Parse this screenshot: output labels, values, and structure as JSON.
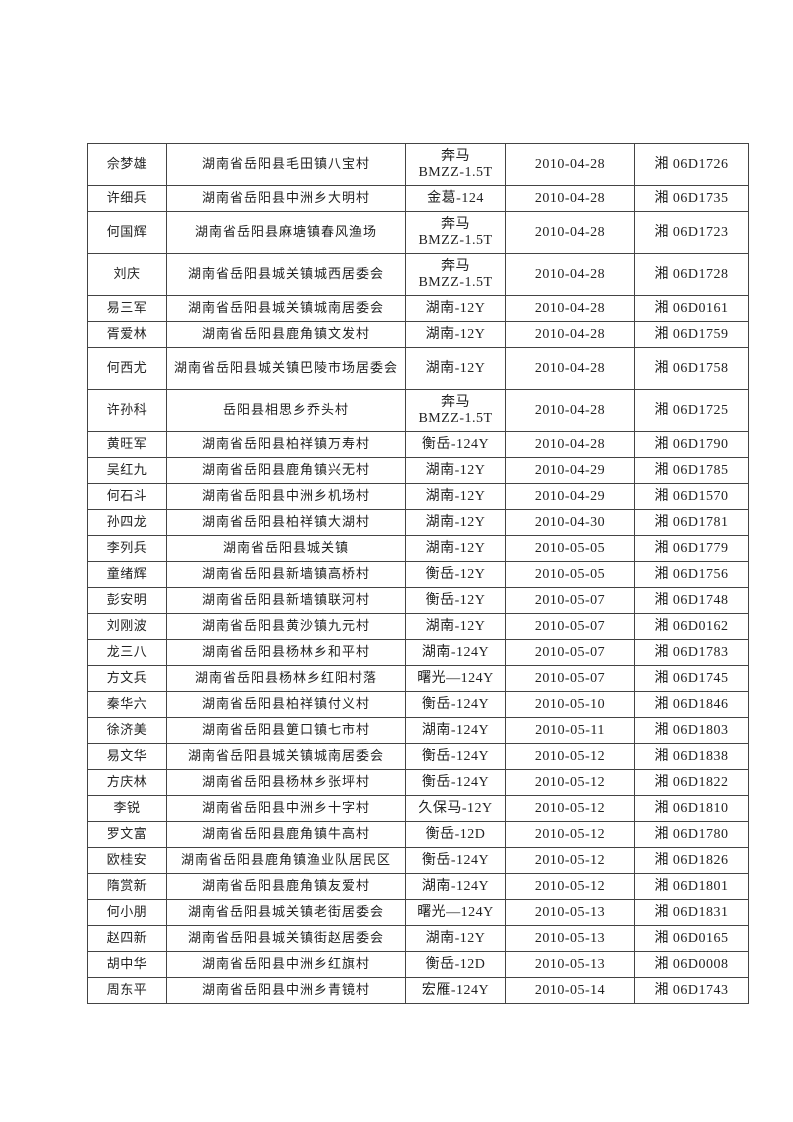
{
  "table": {
    "rows": [
      [
        "佘梦雄",
        "湖南省岳阳县毛田镇八宝村",
        "奔马\nBMZZ-1.5T",
        "2010-04-28",
        "湘 06D1726"
      ],
      [
        "许细兵",
        "湖南省岳阳县中洲乡大明村",
        "金葛-124",
        "2010-04-28",
        "湘 06D1735"
      ],
      [
        "何国辉",
        "湖南省岳阳县麻塘镇春风渔场",
        "奔马\nBMZZ-1.5T",
        "2010-04-28",
        "湘 06D1723"
      ],
      [
        "刘庆",
        "湖南省岳阳县城关镇城西居委会",
        "奔马\nBMZZ-1.5T",
        "2010-04-28",
        "湘 06D1728"
      ],
      [
        "易三军",
        "湖南省岳阳县城关镇城南居委会",
        "湖南-12Y",
        "2010-04-28",
        "湘 06D0161"
      ],
      [
        "胥爱林",
        "湖南省岳阳县鹿角镇文发村",
        "湖南-12Y",
        "2010-04-28",
        "湘 06D1759"
      ],
      [
        "何西尤",
        "湖南省岳阳县城关镇巴陵市场居委会",
        "湖南-12Y",
        "2010-04-28",
        "湘 06D1758"
      ],
      [
        "许孙科",
        "岳阳县相思乡乔头村",
        "奔马\nBMZZ-1.5T",
        "2010-04-28",
        "湘 06D1725"
      ],
      [
        "黄旺军",
        "湖南省岳阳县柏祥镇万寿村",
        "衡岳-124Y",
        "2010-04-28",
        "湘 06D1790"
      ],
      [
        "吴红九",
        "湖南省岳阳县鹿角镇兴无村",
        "湖南-12Y",
        "2010-04-29",
        "湘 06D1785"
      ],
      [
        "何石斗",
        "湖南省岳阳县中洲乡机场村",
        "湖南-12Y",
        "2010-04-29",
        "湘 06D1570"
      ],
      [
        "孙四龙",
        "湖南省岳阳县柏祥镇大湖村",
        "湖南-12Y",
        "2010-04-30",
        "湘 06D1781"
      ],
      [
        "李列兵",
        "湖南省岳阳县城关镇",
        "湖南-12Y",
        "2010-05-05",
        "湘 06D1779"
      ],
      [
        "童绪辉",
        "湖南省岳阳县新墙镇高桥村",
        "衡岳-12Y",
        "2010-05-05",
        "湘 06D1756"
      ],
      [
        "彭安明",
        "湖南省岳阳县新墙镇联河村",
        "衡岳-12Y",
        "2010-05-07",
        "湘 06D1748"
      ],
      [
        "刘刚波",
        "湖南省岳阳县黄沙镇九元村",
        "湖南-12Y",
        "2010-05-07",
        "湘 06D0162"
      ],
      [
        "龙三八",
        "湖南省岳阳县杨林乡和平村",
        "湖南-124Y",
        "2010-05-07",
        "湘 06D1783"
      ],
      [
        "方文兵",
        "湖南省岳阳县杨林乡红阳村落",
        "曙光—124Y",
        "2010-05-07",
        "湘 06D1745"
      ],
      [
        "秦华六",
        "湖南省岳阳县柏祥镇付义村",
        "衡岳-124Y",
        "2010-05-10",
        "湘 06D1846"
      ],
      [
        "徐济美",
        "湖南省岳阳县筻口镇七市村",
        "湖南-124Y",
        "2010-05-11",
        "湘 06D1803"
      ],
      [
        "易文华",
        "湖南省岳阳县城关镇城南居委会",
        "衡岳-124Y",
        "2010-05-12",
        "湘 06D1838"
      ],
      [
        "方庆林",
        "湖南省岳阳县杨林乡张坪村",
        "衡岳-124Y",
        "2010-05-12",
        "湘 06D1822"
      ],
      [
        "李锐",
        "湖南省岳阳县中洲乡十字村",
        "久保马-12Y",
        "2010-05-12",
        "湘 06D1810"
      ],
      [
        "罗文富",
        "湖南省岳阳县鹿角镇牛高村",
        "衡岳-12D",
        "2010-05-12",
        "湘 06D1780"
      ],
      [
        "欧桂安",
        "湖南省岳阳县鹿角镇渔业队居民区",
        "衡岳-124Y",
        "2010-05-12",
        "湘 06D1826"
      ],
      [
        "隋赏新",
        "湖南省岳阳县鹿角镇友爱村",
        "湖南-124Y",
        "2010-05-12",
        "湘 06D1801"
      ],
      [
        "何小朋",
        "湖南省岳阳县城关镇老街居委会",
        "曙光—124Y",
        "2010-05-13",
        "湘 06D1831"
      ],
      [
        "赵四新",
        "湖南省岳阳县城关镇街赵居委会",
        "湖南-12Y",
        "2010-05-13",
        "湘 06D0165"
      ],
      [
        "胡中华",
        "湖南省岳阳县中洲乡红旗村",
        "衡岳-12D",
        "2010-05-13",
        "湘 06D0008"
      ],
      [
        "周东平",
        "湖南省岳阳县中洲乡青镜村",
        "宏雁-124Y",
        "2010-05-14",
        "湘 06D1743"
      ]
    ]
  }
}
